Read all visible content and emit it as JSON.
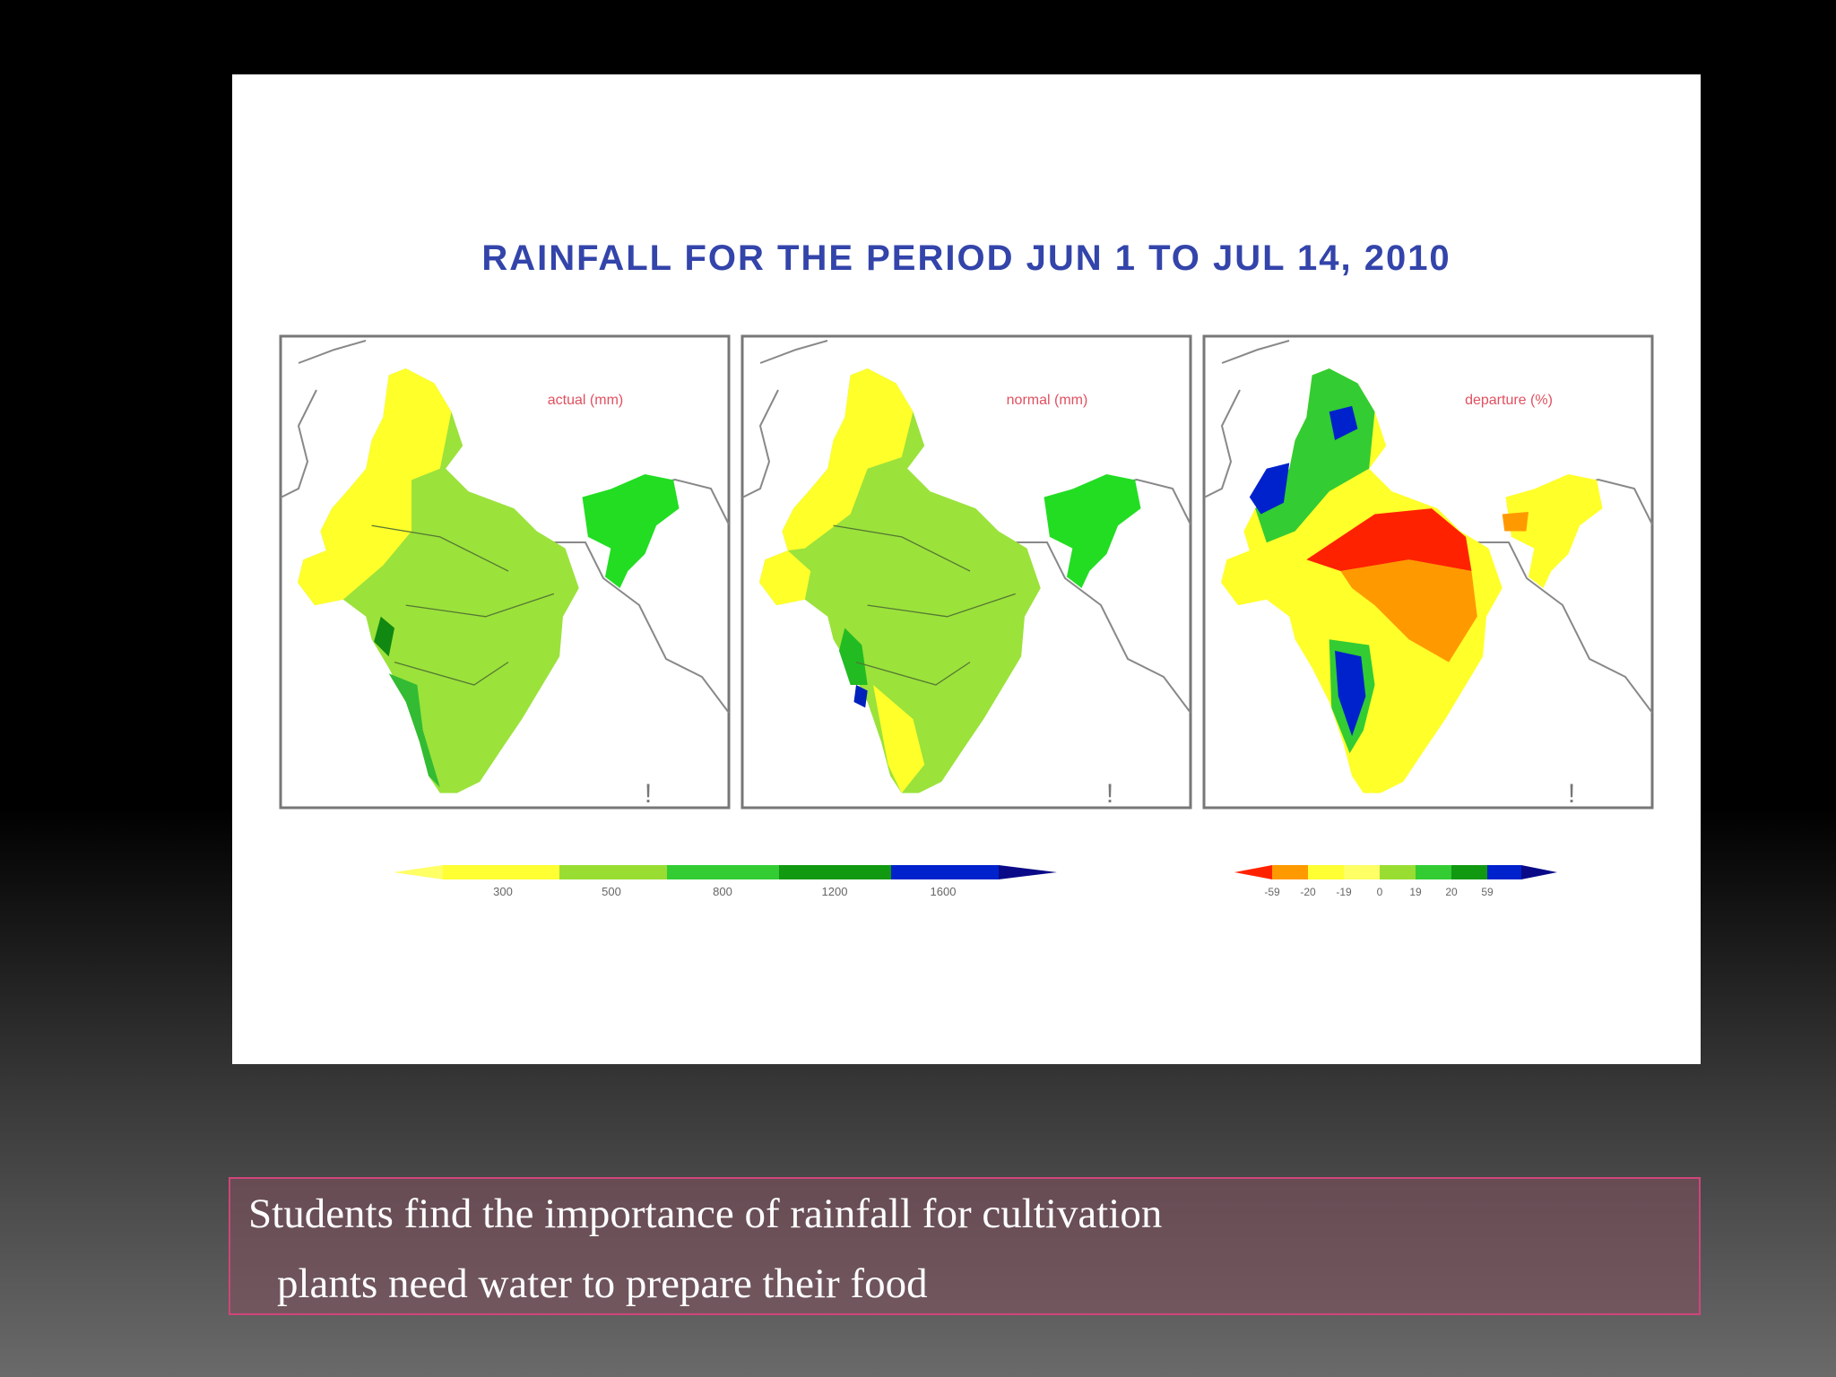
{
  "figure": {
    "title": "RAINFALL FOR THE PERIOD JUN 1 TO JUL 14, 2010",
    "panels": [
      {
        "label": "actual (mm)"
      },
      {
        "label": "normal (mm)"
      },
      {
        "label": "departure (%)"
      }
    ],
    "legend_left": {
      "ticks": [
        "300",
        "500",
        "800",
        "1200",
        "1600"
      ],
      "colors": [
        "#ffff33",
        "#99dd33",
        "#33cc33",
        "#119911",
        "#0022cc"
      ]
    },
    "legend_right": {
      "ticks": [
        "-59",
        "-20",
        "-19",
        "0",
        "19",
        "20",
        "59"
      ],
      "colors": [
        "#ff2200",
        "#ff9900",
        "#ffff33",
        "#99dd33",
        "#33cc33",
        "#119911",
        "#0022cc"
      ]
    }
  },
  "caption": {
    "line1": "Students find the importance of rainfall for cultivation",
    "line2": "plants need water to prepare their food"
  }
}
